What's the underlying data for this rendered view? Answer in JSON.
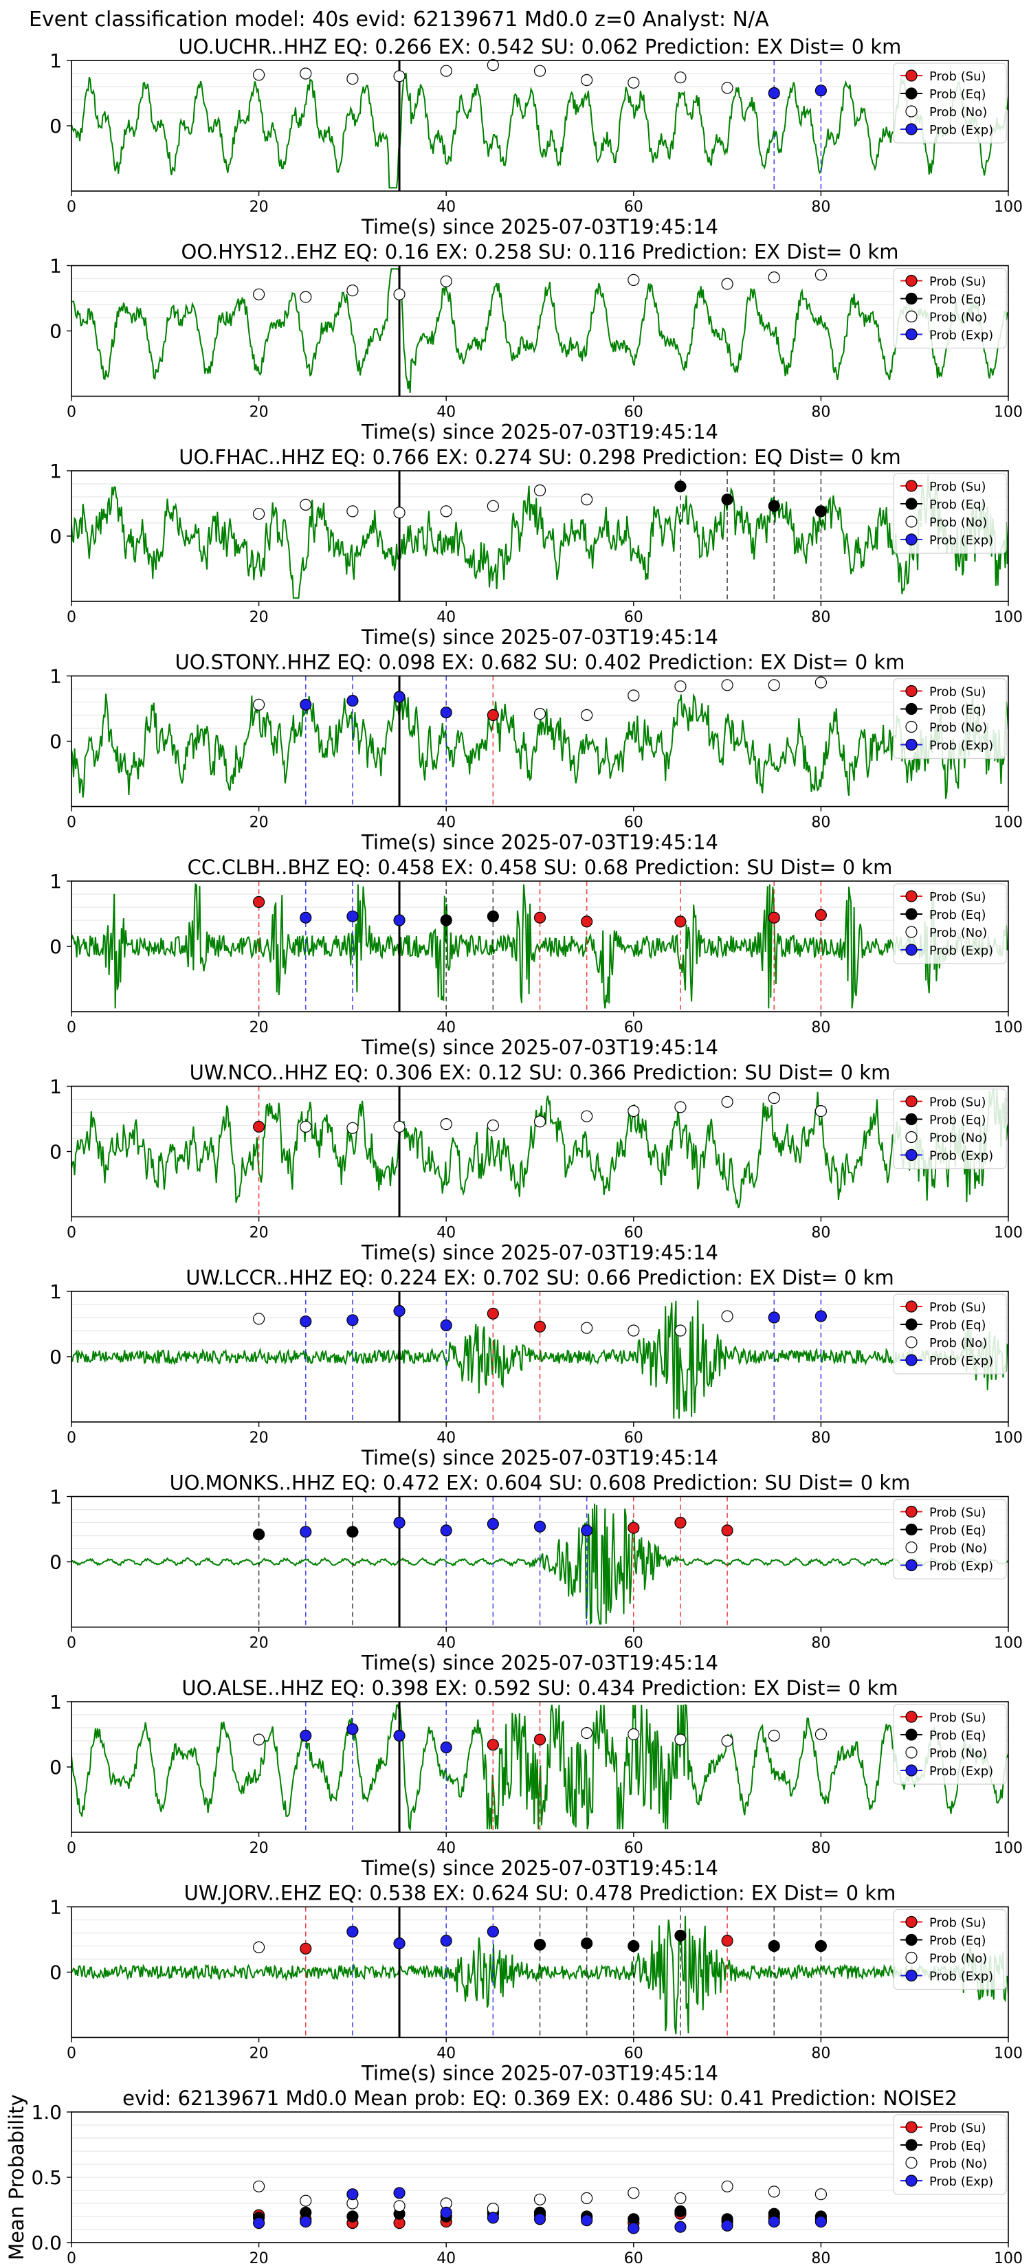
{
  "figure_title": "Event classification model: 40s evid: 62139671 Md0.0 z=0 Analyst: N/A",
  "colors": {
    "su": "#e31a1c",
    "eq": "#000000",
    "no": "#ffffff",
    "exp": "#1f1fe8",
    "wave": "#008000",
    "grid": "#e6e6e6"
  },
  "legend": [
    "Prob (Su)",
    "Prob (Eq)",
    "Prob (No)",
    "Prob (Exp)"
  ],
  "chart_data": [
    {
      "type": "line",
      "station": "UO.UCHR..HHZ",
      "title": "UO.UCHR..HHZ   EQ: 0.266  EX: 0.542  SU: 0.062   Prediction: EX    Dist= 0 km",
      "xlabel": "Time(s) since 2025-07-03T19:45:14",
      "xlim": [
        0,
        100
      ],
      "xticks": [
        0,
        20,
        40,
        60,
        80,
        100
      ],
      "ylim": [
        -1,
        1
      ],
      "yticks": [
        0,
        1
      ],
      "pick_time": 35,
      "waveform_style": "smooth",
      "points": [
        {
          "t": 20,
          "p": 0.78,
          "c": "no"
        },
        {
          "t": 25,
          "p": 0.8,
          "c": "no"
        },
        {
          "t": 30,
          "p": 0.72,
          "c": "no"
        },
        {
          "t": 35,
          "p": 0.76,
          "c": "no"
        },
        {
          "t": 40,
          "p": 0.84,
          "c": "no"
        },
        {
          "t": 45,
          "p": 0.93,
          "c": "no"
        },
        {
          "t": 50,
          "p": 0.84,
          "c": "no"
        },
        {
          "t": 55,
          "p": 0.7,
          "c": "no"
        },
        {
          "t": 60,
          "p": 0.66,
          "c": "no"
        },
        {
          "t": 65,
          "p": 0.74,
          "c": "no"
        },
        {
          "t": 70,
          "p": 0.58,
          "c": "no"
        },
        {
          "t": 75,
          "p": 0.5,
          "c": "exp"
        },
        {
          "t": 80,
          "p": 0.54,
          "c": "exp"
        }
      ]
    },
    {
      "type": "line",
      "station": "OO.HYS12..EHZ",
      "title": "OO.HYS12..EHZ   EQ: 0.16  EX: 0.258  SU: 0.116   Prediction: EX    Dist= 0 km",
      "xlabel": "Time(s) since 2025-07-03T19:45:14",
      "xlim": [
        0,
        100
      ],
      "xticks": [
        0,
        20,
        40,
        60,
        80,
        100
      ],
      "ylim": [
        -1,
        1
      ],
      "yticks": [
        0,
        1
      ],
      "pick_time": 35,
      "waveform_style": "smooth",
      "points": [
        {
          "t": 20,
          "p": 0.56,
          "c": "no"
        },
        {
          "t": 25,
          "p": 0.52,
          "c": "no"
        },
        {
          "t": 30,
          "p": 0.62,
          "c": "no"
        },
        {
          "t": 35,
          "p": 0.56,
          "c": "no"
        },
        {
          "t": 40,
          "p": 0.76,
          "c": "no"
        },
        {
          "t": 60,
          "p": 0.78,
          "c": "no"
        },
        {
          "t": 70,
          "p": 0.72,
          "c": "no"
        },
        {
          "t": 75,
          "p": 0.82,
          "c": "no"
        },
        {
          "t": 80,
          "p": 0.86,
          "c": "no"
        }
      ]
    },
    {
      "type": "line",
      "station": "UO.FHAC..HHZ",
      "title": "UO.FHAC..HHZ   EQ: 0.766  EX: 0.274  SU: 0.298   Prediction: EQ    Dist= 0 km",
      "xlabel": "Time(s) since 2025-07-03T19:45:14",
      "xlim": [
        0,
        100
      ],
      "xticks": [
        0,
        20,
        40,
        60,
        80,
        100
      ],
      "ylim": [
        -1,
        1
      ],
      "yticks": [
        0,
        1
      ],
      "pick_time": 35,
      "waveform_style": "noisy",
      "points": [
        {
          "t": 20,
          "p": 0.34,
          "c": "no"
        },
        {
          "t": 25,
          "p": 0.48,
          "c": "no"
        },
        {
          "t": 30,
          "p": 0.38,
          "c": "no"
        },
        {
          "t": 35,
          "p": 0.36,
          "c": "no"
        },
        {
          "t": 40,
          "p": 0.38,
          "c": "no"
        },
        {
          "t": 45,
          "p": 0.46,
          "c": "no"
        },
        {
          "t": 50,
          "p": 0.7,
          "c": "no"
        },
        {
          "t": 55,
          "p": 0.56,
          "c": "no"
        },
        {
          "t": 65,
          "p": 0.76,
          "c": "eq"
        },
        {
          "t": 70,
          "p": 0.56,
          "c": "eq"
        },
        {
          "t": 75,
          "p": 0.46,
          "c": "eq"
        },
        {
          "t": 80,
          "p": 0.38,
          "c": "eq"
        }
      ]
    },
    {
      "type": "line",
      "station": "UO.STONY..HHZ",
      "title": "UO.STONY..HHZ   EQ: 0.098  EX: 0.682  SU: 0.402   Prediction: EX    Dist= 0 km",
      "xlabel": "Time(s) since 2025-07-03T19:45:14",
      "xlim": [
        0,
        100
      ],
      "xticks": [
        0,
        20,
        40,
        60,
        80,
        100
      ],
      "ylim": [
        -1,
        1
      ],
      "yticks": [
        0,
        1
      ],
      "pick_time": 35,
      "waveform_style": "noisy",
      "points": [
        {
          "t": 20,
          "p": 0.56,
          "c": "no"
        },
        {
          "t": 25,
          "p": 0.56,
          "c": "exp"
        },
        {
          "t": 30,
          "p": 0.62,
          "c": "exp"
        },
        {
          "t": 35,
          "p": 0.68,
          "c": "exp"
        },
        {
          "t": 40,
          "p": 0.44,
          "c": "exp"
        },
        {
          "t": 45,
          "p": 0.4,
          "c": "su"
        },
        {
          "t": 50,
          "p": 0.42,
          "c": "no"
        },
        {
          "t": 55,
          "p": 0.4,
          "c": "no"
        },
        {
          "t": 60,
          "p": 0.7,
          "c": "no"
        },
        {
          "t": 65,
          "p": 0.84,
          "c": "no"
        },
        {
          "t": 70,
          "p": 0.86,
          "c": "no"
        },
        {
          "t": 75,
          "p": 0.86,
          "c": "no"
        },
        {
          "t": 80,
          "p": 0.9,
          "c": "no"
        }
      ]
    },
    {
      "type": "line",
      "station": "CC.CLBH..BHZ",
      "title": "CC.CLBH..BHZ   EQ: 0.458  EX: 0.458  SU: 0.68   Prediction: SU    Dist= 0 km",
      "xlabel": "Time(s) since 2025-07-03T19:45:14",
      "xlim": [
        0,
        100
      ],
      "xticks": [
        0,
        20,
        40,
        60,
        80,
        100
      ],
      "ylim": [
        -1,
        1
      ],
      "yticks": [
        0,
        1
      ],
      "pick_time": 35,
      "waveform_style": "bursty",
      "points": [
        {
          "t": 20,
          "p": 0.68,
          "c": "su"
        },
        {
          "t": 25,
          "p": 0.44,
          "c": "exp"
        },
        {
          "t": 30,
          "p": 0.46,
          "c": "exp"
        },
        {
          "t": 35,
          "p": 0.4,
          "c": "exp"
        },
        {
          "t": 40,
          "p": 0.4,
          "c": "eq"
        },
        {
          "t": 45,
          "p": 0.46,
          "c": "eq"
        },
        {
          "t": 50,
          "p": 0.44,
          "c": "su"
        },
        {
          "t": 55,
          "p": 0.38,
          "c": "su"
        },
        {
          "t": 65,
          "p": 0.38,
          "c": "su"
        },
        {
          "t": 75,
          "p": 0.44,
          "c": "su"
        },
        {
          "t": 80,
          "p": 0.48,
          "c": "su"
        }
      ]
    },
    {
      "type": "line",
      "station": "UW.NCO..HHZ",
      "title": "UW.NCO..HHZ   EQ: 0.306  EX: 0.12  SU: 0.366   Prediction: SU    Dist= 0 km",
      "xlabel": "Time(s) since 2025-07-03T19:45:14",
      "xlim": [
        0,
        100
      ],
      "xticks": [
        0,
        20,
        40,
        60,
        80,
        100
      ],
      "ylim": [
        -1,
        1
      ],
      "yticks": [
        0,
        1
      ],
      "pick_time": 35,
      "waveform_style": "noisy",
      "points": [
        {
          "t": 20,
          "p": 0.38,
          "c": "su"
        },
        {
          "t": 25,
          "p": 0.38,
          "c": "no"
        },
        {
          "t": 30,
          "p": 0.36,
          "c": "no"
        },
        {
          "t": 35,
          "p": 0.38,
          "c": "no"
        },
        {
          "t": 40,
          "p": 0.42,
          "c": "no"
        },
        {
          "t": 45,
          "p": 0.4,
          "c": "no"
        },
        {
          "t": 50,
          "p": 0.46,
          "c": "no"
        },
        {
          "t": 55,
          "p": 0.54,
          "c": "no"
        },
        {
          "t": 60,
          "p": 0.62,
          "c": "no"
        },
        {
          "t": 65,
          "p": 0.68,
          "c": "no"
        },
        {
          "t": 70,
          "p": 0.76,
          "c": "no"
        },
        {
          "t": 75,
          "p": 0.82,
          "c": "no"
        },
        {
          "t": 80,
          "p": 0.62,
          "c": "no"
        }
      ]
    },
    {
      "type": "line",
      "station": "UW.LCCR..HHZ",
      "title": "UW.LCCR..HHZ   EQ: 0.224  EX: 0.702  SU: 0.66   Prediction: EX    Dist= 0 km",
      "xlabel": "Time(s) since 2025-07-03T19:45:14",
      "xlim": [
        0,
        100
      ],
      "xticks": [
        0,
        20,
        40,
        60,
        80,
        100
      ],
      "ylim": [
        -1,
        1
      ],
      "yticks": [
        0,
        1
      ],
      "pick_time": 35,
      "waveform_style": "quiet-event",
      "points": [
        {
          "t": 20,
          "p": 0.58,
          "c": "no"
        },
        {
          "t": 25,
          "p": 0.54,
          "c": "exp"
        },
        {
          "t": 30,
          "p": 0.56,
          "c": "exp"
        },
        {
          "t": 35,
          "p": 0.7,
          "c": "exp"
        },
        {
          "t": 40,
          "p": 0.48,
          "c": "exp"
        },
        {
          "t": 45,
          "p": 0.66,
          "c": "su"
        },
        {
          "t": 50,
          "p": 0.46,
          "c": "su"
        },
        {
          "t": 55,
          "p": 0.44,
          "c": "no"
        },
        {
          "t": 60,
          "p": 0.4,
          "c": "no"
        },
        {
          "t": 65,
          "p": 0.4,
          "c": "no"
        },
        {
          "t": 70,
          "p": 0.62,
          "c": "no"
        },
        {
          "t": 75,
          "p": 0.6,
          "c": "exp"
        },
        {
          "t": 80,
          "p": 0.62,
          "c": "exp"
        }
      ]
    },
    {
      "type": "line",
      "station": "UO.MONKS..HHZ",
      "title": "UO.MONKS..HHZ   EQ: 0.472  EX: 0.604  SU: 0.608   Prediction: SU    Dist= 0 km",
      "xlabel": "Time(s) since 2025-07-03T19:45:14",
      "xlim": [
        0,
        100
      ],
      "xticks": [
        0,
        20,
        40,
        60,
        80,
        100
      ],
      "ylim": [
        -1,
        1
      ],
      "yticks": [
        0,
        1
      ],
      "pick_time": 35,
      "waveform_style": "quiet-burst",
      "points": [
        {
          "t": 20,
          "p": 0.42,
          "c": "eq"
        },
        {
          "t": 25,
          "p": 0.46,
          "c": "exp"
        },
        {
          "t": 30,
          "p": 0.46,
          "c": "eq"
        },
        {
          "t": 35,
          "p": 0.6,
          "c": "exp"
        },
        {
          "t": 40,
          "p": 0.48,
          "c": "exp"
        },
        {
          "t": 45,
          "p": 0.58,
          "c": "exp"
        },
        {
          "t": 50,
          "p": 0.54,
          "c": "exp"
        },
        {
          "t": 55,
          "p": 0.48,
          "c": "exp"
        },
        {
          "t": 60,
          "p": 0.52,
          "c": "su"
        },
        {
          "t": 65,
          "p": 0.6,
          "c": "su"
        },
        {
          "t": 70,
          "p": 0.48,
          "c": "su"
        }
      ]
    },
    {
      "type": "line",
      "station": "UO.ALSE..HHZ",
      "title": "UO.ALSE..HHZ   EQ: 0.398  EX: 0.592  SU: 0.434   Prediction: EX    Dist= 0 km",
      "xlabel": "Time(s) since 2025-07-03T19:45:14",
      "xlim": [
        0,
        100
      ],
      "xticks": [
        0,
        20,
        40,
        60,
        80,
        100
      ],
      "ylim": [
        -1,
        1
      ],
      "yticks": [
        0,
        1
      ],
      "pick_time": 35,
      "waveform_style": "smooth-event",
      "points": [
        {
          "t": 20,
          "p": 0.42,
          "c": "no"
        },
        {
          "t": 25,
          "p": 0.48,
          "c": "exp"
        },
        {
          "t": 30,
          "p": 0.58,
          "c": "exp"
        },
        {
          "t": 35,
          "p": 0.48,
          "c": "exp"
        },
        {
          "t": 40,
          "p": 0.3,
          "c": "exp"
        },
        {
          "t": 45,
          "p": 0.34,
          "c": "su"
        },
        {
          "t": 50,
          "p": 0.42,
          "c": "su"
        },
        {
          "t": 55,
          "p": 0.52,
          "c": "no"
        },
        {
          "t": 60,
          "p": 0.5,
          "c": "no"
        },
        {
          "t": 65,
          "p": 0.42,
          "c": "no"
        },
        {
          "t": 70,
          "p": 0.4,
          "c": "no"
        },
        {
          "t": 75,
          "p": 0.48,
          "c": "no"
        },
        {
          "t": 80,
          "p": 0.5,
          "c": "no"
        }
      ]
    },
    {
      "type": "line",
      "station": "UW.JORV..EHZ",
      "title": "UW.JORV..EHZ   EQ: 0.538  EX: 0.624  SU: 0.478   Prediction: EX    Dist= 0 km",
      "xlabel": "Time(s) since 2025-07-03T19:45:14",
      "xlim": [
        0,
        100
      ],
      "xticks": [
        0,
        20,
        40,
        60,
        80,
        100
      ],
      "ylim": [
        -1,
        1
      ],
      "yticks": [
        0,
        1
      ],
      "pick_time": 35,
      "waveform_style": "quiet-event",
      "points": [
        {
          "t": 20,
          "p": 0.38,
          "c": "no"
        },
        {
          "t": 25,
          "p": 0.36,
          "c": "su"
        },
        {
          "t": 30,
          "p": 0.62,
          "c": "exp"
        },
        {
          "t": 35,
          "p": 0.44,
          "c": "exp"
        },
        {
          "t": 40,
          "p": 0.48,
          "c": "exp"
        },
        {
          "t": 45,
          "p": 0.62,
          "c": "exp"
        },
        {
          "t": 50,
          "p": 0.42,
          "c": "eq"
        },
        {
          "t": 55,
          "p": 0.44,
          "c": "eq"
        },
        {
          "t": 60,
          "p": 0.4,
          "c": "eq"
        },
        {
          "t": 65,
          "p": 0.56,
          "c": "eq"
        },
        {
          "t": 70,
          "p": 0.48,
          "c": "su"
        },
        {
          "t": 75,
          "p": 0.4,
          "c": "eq"
        },
        {
          "t": 80,
          "p": 0.4,
          "c": "eq"
        }
      ]
    },
    {
      "type": "scatter",
      "title": "evid: 62139671  Md0.0   Mean prob:   EQ: 0.369  EX: 0.486  SU: 0.41   Prediction: NOISE2",
      "ylabel": "Mean Probability",
      "xlim": [
        0,
        100
      ],
      "xticks": [
        0,
        20,
        40,
        60,
        80,
        100
      ],
      "ylim": [
        0,
        1
      ],
      "yticks": [
        "0.0",
        "0.5",
        "1.0"
      ],
      "series": [
        {
          "name": "Prob (Su)",
          "c": "su",
          "x": [
            20,
            25,
            30,
            35,
            40,
            45,
            50,
            55,
            60,
            65,
            70,
            75,
            80
          ],
          "y": [
            0.21,
            0.18,
            0.15,
            0.15,
            0.16,
            0.22,
            0.21,
            0.19,
            0.15,
            0.22,
            0.16,
            0.19,
            0.18
          ]
        },
        {
          "name": "Prob (Eq)",
          "c": "eq",
          "x": [
            20,
            25,
            30,
            35,
            40,
            45,
            50,
            55,
            60,
            65,
            70,
            75,
            80
          ],
          "y": [
            0.19,
            0.23,
            0.2,
            0.22,
            0.2,
            0.24,
            0.23,
            0.2,
            0.18,
            0.24,
            0.18,
            0.22,
            0.2
          ]
        },
        {
          "name": "Prob (No)",
          "c": "no",
          "x": [
            20,
            25,
            30,
            35,
            40,
            45,
            50,
            55,
            60,
            65,
            70,
            75,
            80
          ],
          "y": [
            0.43,
            0.32,
            0.3,
            0.28,
            0.3,
            0.26,
            0.33,
            0.34,
            0.38,
            0.34,
            0.43,
            0.39,
            0.37
          ]
        },
        {
          "name": "Prob (Exp)",
          "c": "exp",
          "x": [
            20,
            25,
            30,
            35,
            40,
            45,
            50,
            55,
            60,
            65,
            70,
            75,
            80
          ],
          "y": [
            0.15,
            0.16,
            0.37,
            0.38,
            0.23,
            0.19,
            0.18,
            0.17,
            0.11,
            0.12,
            0.13,
            0.16,
            0.16
          ]
        }
      ]
    }
  ]
}
